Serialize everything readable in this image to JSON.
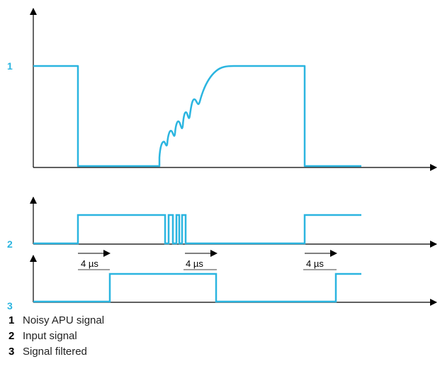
{
  "colors": {
    "signal": "#2bb5e0",
    "axis": "#000000"
  },
  "traces": [
    {
      "id": "1",
      "label": "1"
    },
    {
      "id": "2",
      "label": "2"
    },
    {
      "id": "3",
      "label": "3"
    }
  ],
  "delays": [
    {
      "label": "4 µs"
    },
    {
      "label": "4 µs"
    },
    {
      "label": "4 µs"
    }
  ],
  "legend": [
    {
      "num": "1",
      "text": "Noisy APU signal"
    },
    {
      "num": "2",
      "text": "Input signal"
    },
    {
      "num": "3",
      "text": "Signal filtered"
    }
  ]
}
